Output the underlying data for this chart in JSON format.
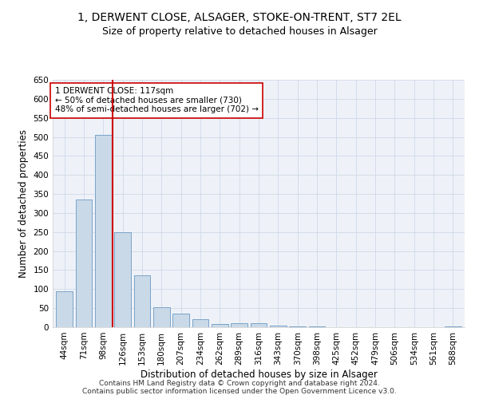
{
  "title_line1": "1, DERWENT CLOSE, ALSAGER, STOKE-ON-TRENT, ST7 2EL",
  "title_line2": "Size of property relative to detached houses in Alsager",
  "xlabel": "Distribution of detached houses by size in Alsager",
  "ylabel": "Number of detached properties",
  "categories": [
    "44sqm",
    "71sqm",
    "98sqm",
    "126sqm",
    "153sqm",
    "180sqm",
    "207sqm",
    "234sqm",
    "262sqm",
    "289sqm",
    "316sqm",
    "343sqm",
    "370sqm",
    "398sqm",
    "425sqm",
    "452sqm",
    "479sqm",
    "506sqm",
    "534sqm",
    "561sqm",
    "588sqm"
  ],
  "values": [
    95,
    335,
    505,
    250,
    137,
    53,
    36,
    20,
    9,
    11,
    11,
    5,
    2,
    2,
    1,
    1,
    1,
    0,
    0,
    0,
    3
  ],
  "bar_color": "#c9d9e8",
  "bar_edge_color": "#7ba3c8",
  "vline_color": "#cc0000",
  "vline_xindex": 2.5,
  "annotation_text": "1 DERWENT CLOSE: 117sqm\n← 50% of detached houses are smaller (730)\n48% of semi-detached houses are larger (702) →",
  "annotation_box_color": "#ffffff",
  "annotation_box_edge": "#cc0000",
  "ylim": [
    0,
    650
  ],
  "yticks": [
    0,
    50,
    100,
    150,
    200,
    250,
    300,
    350,
    400,
    450,
    500,
    550,
    600,
    650
  ],
  "grid_color": "#d0d8e8",
  "bg_color": "#eef2f8",
  "footer_text": "Contains HM Land Registry data © Crown copyright and database right 2024.\nContains public sector information licensed under the Open Government Licence v3.0.",
  "title_fontsize": 10,
  "subtitle_fontsize": 9,
  "axis_label_fontsize": 8.5,
  "tick_fontsize": 7.5,
  "annotation_fontsize": 7.5,
  "footer_fontsize": 6.5
}
